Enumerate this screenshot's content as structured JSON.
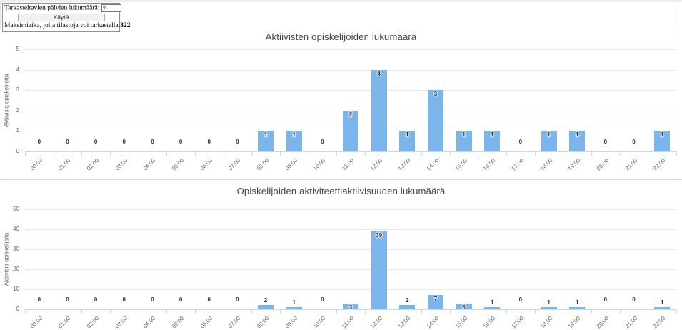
{
  "form": {
    "days_label": "Tarkasteltavien päivien lukumäärä:",
    "days_value": "7",
    "apply_button": "Käytä",
    "max_time_label": "Maksimiaika, jolta tilastoja voi tarkastella:",
    "max_time_value": "322"
  },
  "colors": {
    "bar": "#7cb5ec",
    "grid": "#e6e6e6",
    "axis_line": "#ccd6eb",
    "title": "#444444",
    "axis_label": "#666666",
    "data_label": "#333333"
  },
  "chart_data": [
    {
      "type": "bar",
      "title": "Aktiivisten opiskelijoiden lukumäärä",
      "xlabel": "",
      "ylabel": "Aktiivisia opiskelijoita",
      "categories": [
        "00:00",
        "01:00",
        "02:00",
        "03:00",
        "04:00",
        "05:00",
        "06:00",
        "07:00",
        "08:00",
        "09:00",
        "10:00",
        "11:00",
        "12:00",
        "13:00",
        "14:00",
        "15:00",
        "16:00",
        "17:00",
        "18:00",
        "19:00",
        "20:00",
        "21:00",
        "22:00"
      ],
      "values": [
        0,
        0,
        0,
        0,
        0,
        0,
        0,
        0,
        1,
        1,
        0,
        2,
        4,
        1,
        3,
        1,
        1,
        0,
        1,
        1,
        0,
        0,
        1
      ],
      "ylim": [
        0,
        5
      ],
      "ytick_step": 1,
      "grid": true,
      "legend": "none",
      "data_labels": true
    },
    {
      "type": "bar",
      "title": "Opiskelijoiden aktiviteettiaktiivisuuden lukumäärä",
      "xlabel": "",
      "ylabel": "Aktiivisia opiskelijoita",
      "categories": [
        "00:00",
        "01:00",
        "02:00",
        "03:00",
        "04:00",
        "05:00",
        "06:00",
        "07:00",
        "08:00",
        "09:00",
        "10:00",
        "11:00",
        "12:00",
        "13:00",
        "14:00",
        "15:00",
        "16:00",
        "17:00",
        "18:00",
        "19:00",
        "20:00",
        "21:00",
        "22:00"
      ],
      "values": [
        0,
        0,
        0,
        0,
        0,
        0,
        0,
        0,
        2,
        1,
        0,
        3,
        39,
        2,
        7,
        3,
        1,
        0,
        1,
        1,
        0,
        0,
        1
      ],
      "ylim": [
        0,
        50
      ],
      "ytick_step": 10,
      "grid": true,
      "legend": "none",
      "data_labels": true
    }
  ]
}
